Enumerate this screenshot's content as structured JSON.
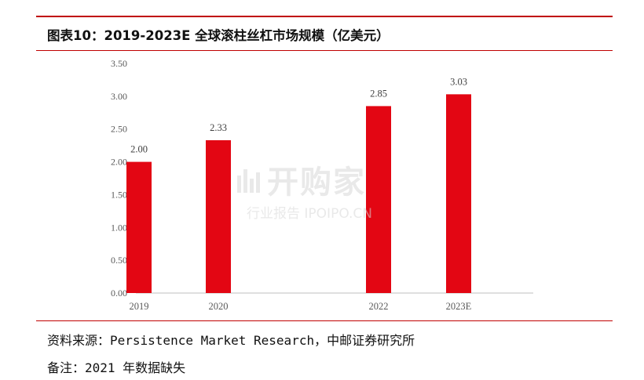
{
  "header": {
    "title": "图表10：2019-2023E 全球滚柱丝杠市场规模（亿美元）"
  },
  "footer": {
    "source": "资料来源：Persistence Market Research，中邮证券研究所",
    "remark": "备注：2021 年数据缺失"
  },
  "watermark": {
    "main": "开购家",
    "sub": "行业报告 IPOIPO.CN"
  },
  "colors": {
    "bar": "#e30613",
    "rule": "#c00000",
    "axis": "#bfbfbf"
  },
  "chart_data": {
    "type": "bar",
    "categories": [
      "2019",
      "2020",
      "2022",
      "2023E"
    ],
    "values": [
      2.0,
      2.33,
      2.85,
      3.03
    ],
    "data_labels": [
      "2.00",
      "2.33",
      "2.85",
      "3.03"
    ],
    "ylim": [
      0,
      3.5
    ],
    "yticks": [
      "0.00",
      "0.50",
      "1.00",
      "1.50",
      "2.00",
      "2.50",
      "3.00",
      "3.50"
    ],
    "grid": false,
    "legend": "none"
  }
}
